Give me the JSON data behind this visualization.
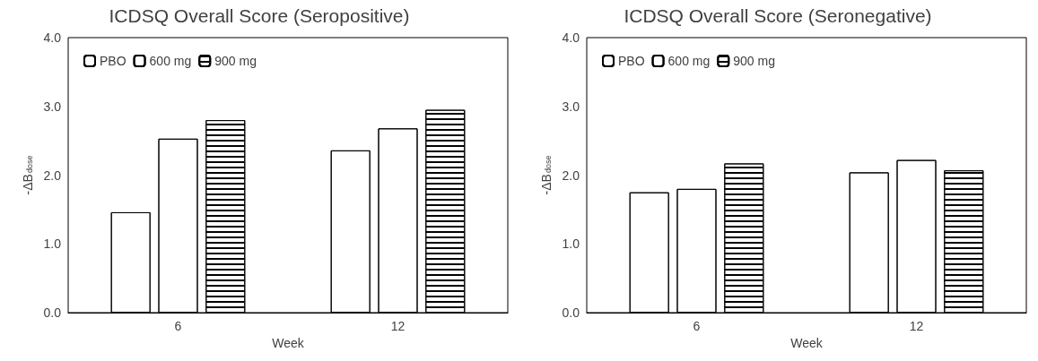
{
  "chart_data": [
    {
      "type": "bar",
      "title": "ICDSQ Overall Score (Seropositive)",
      "xlabel": "Week",
      "ylabel": "-ΔB$_{dose}$",
      "categories": [
        "6",
        "12"
      ],
      "series": [
        {
          "name": "PBO",
          "color": "#ffffff",
          "values": [
            1.46,
            2.36
          ]
        },
        {
          "name": "600 mg",
          "color": "#ffffff",
          "values": [
            2.53,
            2.68
          ]
        },
        {
          "name": "900 mg",
          "color": "#ffffff",
          "values": [
            2.8,
            2.95
          ]
        }
      ],
      "ylim": [
        0,
        4
      ],
      "yticks": [
        {
          "value": 0,
          "label": "0.0"
        },
        {
          "value": 1,
          "label": "1.0"
        },
        {
          "value": 2,
          "label": "2.0"
        },
        {
          "value": 3,
          "label": "3.0"
        },
        {
          "value": 4,
          "label": "4.0"
        }
      ],
      "grid": false,
      "legend": "top left"
    },
    {
      "type": "bar",
      "title": "ICDSQ Overall Score (Seronegative)",
      "xlabel": "Week",
      "ylabel": "-ΔB$_{dose}$",
      "categories": [
        "6",
        "12"
      ],
      "series": [
        {
          "name": "PBO",
          "color": "#ffffff",
          "values": [
            1.75,
            2.04
          ]
        },
        {
          "name": "600 mg",
          "color": "#ffffff",
          "values": [
            1.8,
            2.22
          ]
        },
        {
          "name": "900 mg",
          "color": "#ffffff",
          "values": [
            2.17,
            2.07
          ]
        }
      ],
      "ylim": [
        0,
        4
      ],
      "yticks": [
        {
          "value": 0,
          "label": "0.0"
        },
        {
          "value": 1,
          "label": "1.0"
        },
        {
          "value": 2,
          "label": "2.0"
        },
        {
          "value": 3,
          "label": "3.0"
        },
        {
          "value": 4,
          "label": "4.0"
        }
      ],
      "grid": false,
      "legend": "top left"
    }
  ]
}
